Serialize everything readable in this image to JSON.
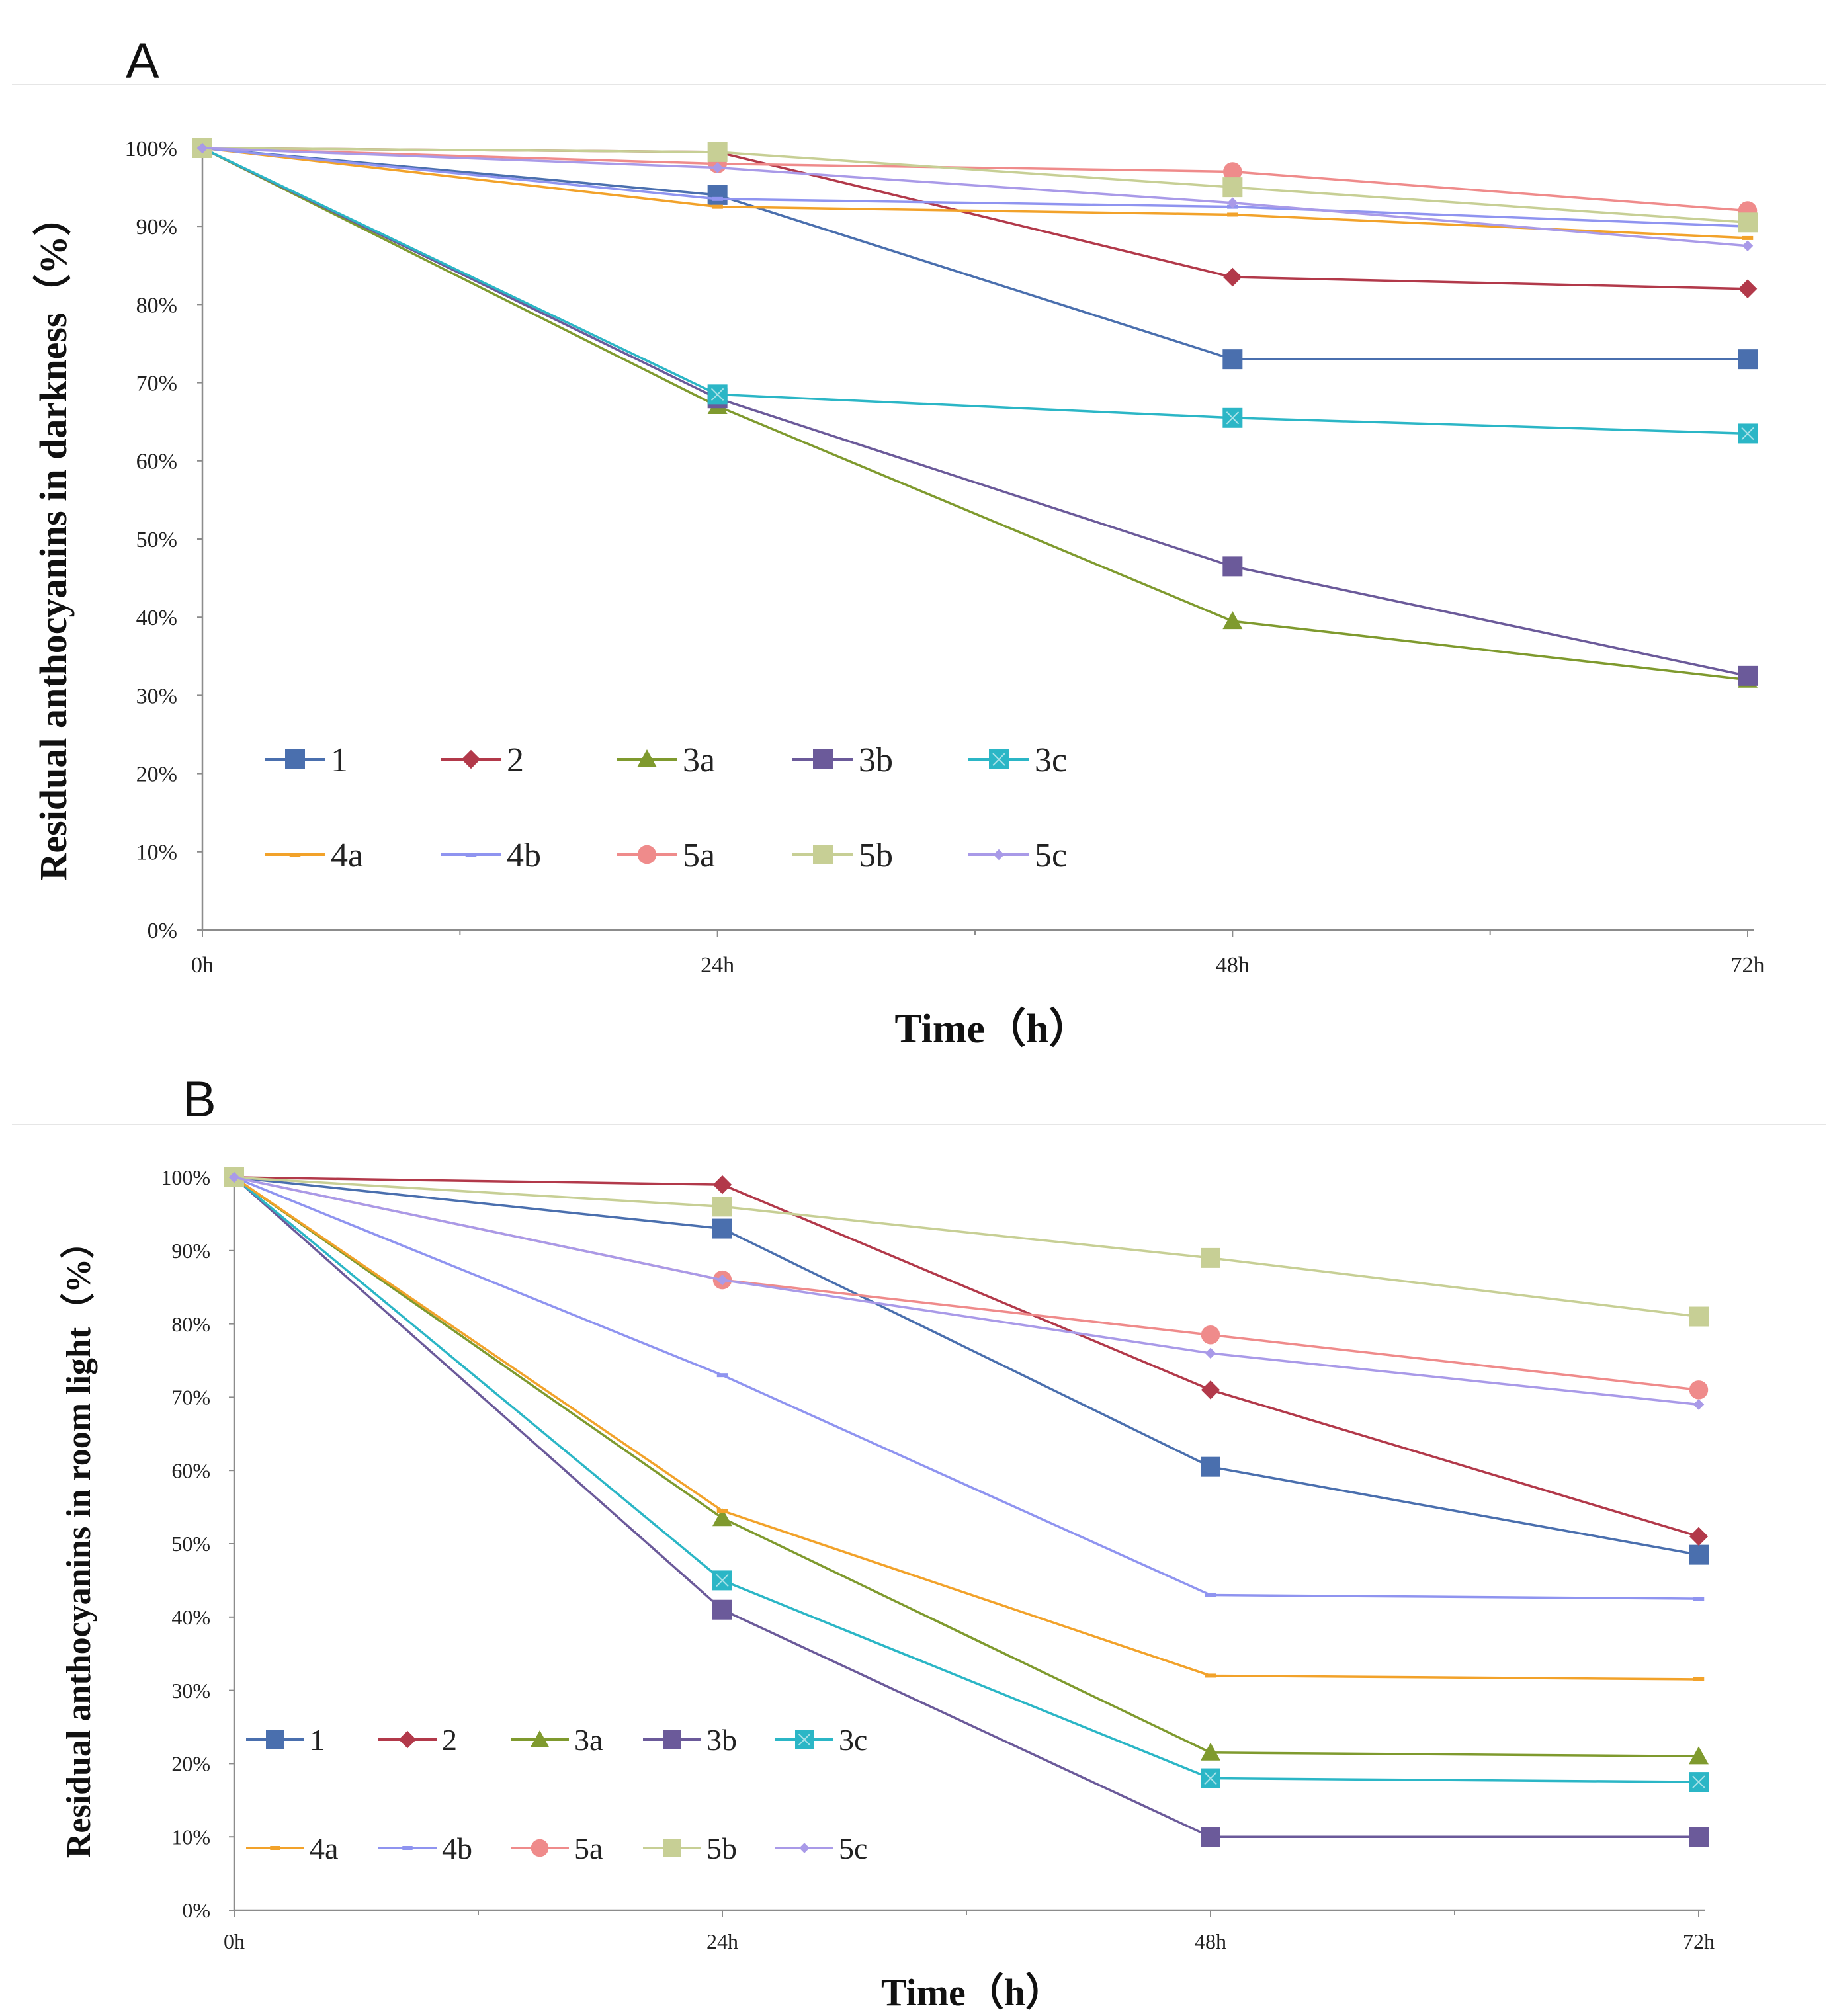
{
  "chart_data": [
    {
      "type": "line",
      "panel_label": "A",
      "title": "",
      "xlabel": "Time（h）",
      "ylabel": "Residual anthocyanins in darkness（%）",
      "categories": [
        "0h",
        "24h",
        "48h",
        "72h"
      ],
      "ylim": [
        0,
        100
      ],
      "yticks": [
        "0%",
        "10%",
        "20%",
        "30%",
        "40%",
        "50%",
        "60%",
        "70%",
        "80%",
        "90%",
        "100%"
      ],
      "grid": false,
      "legend_position": "bottom-left",
      "series": [
        {
          "name": "1",
          "values": [
            100,
            94.0,
            73.0,
            73.0
          ],
          "color": "#4a6fae",
          "marker": "square"
        },
        {
          "name": "2",
          "values": [
            100,
            99.5,
            83.5,
            82.0
          ],
          "color": "#b2394a",
          "marker": "diamond"
        },
        {
          "name": "3a",
          "values": [
            100,
            67.0,
            39.5,
            32.0
          ],
          "color": "#7f9a2e",
          "marker": "triangle"
        },
        {
          "name": "3b",
          "values": [
            100,
            68.0,
            46.5,
            32.5
          ],
          "color": "#6b5a9a",
          "marker": "square"
        },
        {
          "name": "3c",
          "values": [
            100,
            68.5,
            65.5,
            63.5
          ],
          "color": "#2bb6c6",
          "marker": "square-x"
        },
        {
          "name": "4a",
          "values": [
            100,
            92.5,
            91.5,
            88.5
          ],
          "color": "#f2a22a",
          "marker": "dash"
        },
        {
          "name": "4b",
          "values": [
            100,
            93.5,
            92.5,
            90.0
          ],
          "color": "#8f94f0",
          "marker": "dash"
        },
        {
          "name": "5a",
          "values": [
            100,
            98.0,
            97.0,
            92.0
          ],
          "color": "#ef8b8b",
          "marker": "circle"
        },
        {
          "name": "5b",
          "values": [
            100,
            99.5,
            95.0,
            90.5
          ],
          "color": "#c7cf95",
          "marker": "square"
        },
        {
          "name": "5c",
          "values": [
            100,
            97.5,
            93.0,
            87.5
          ],
          "color": "#a99ae8",
          "marker": "small-diamond"
        }
      ]
    },
    {
      "type": "line",
      "panel_label": "B",
      "title": "",
      "xlabel": "Time（h）",
      "ylabel": "Residual anthocyanins in room light（%）",
      "categories": [
        "0h",
        "24h",
        "48h",
        "72h"
      ],
      "ylim": [
        0,
        100
      ],
      "yticks": [
        "0%",
        "10%",
        "20%",
        "30%",
        "40%",
        "50%",
        "60%",
        "70%",
        "80%",
        "90%",
        "100%"
      ],
      "grid": false,
      "legend_position": "bottom-left",
      "series": [
        {
          "name": "1",
          "values": [
            100,
            93.0,
            60.5,
            48.5
          ],
          "color": "#4a6fae",
          "marker": "square"
        },
        {
          "name": "2",
          "values": [
            100,
            99.0,
            71.0,
            51.0
          ],
          "color": "#b2394a",
          "marker": "diamond"
        },
        {
          "name": "3a",
          "values": [
            100,
            53.5,
            21.5,
            21.0
          ],
          "color": "#7f9a2e",
          "marker": "triangle"
        },
        {
          "name": "3b",
          "values": [
            100,
            41.0,
            10.0,
            10.0
          ],
          "color": "#6b5a9a",
          "marker": "square"
        },
        {
          "name": "3c",
          "values": [
            100,
            45.0,
            18.0,
            17.5
          ],
          "color": "#2bb6c6",
          "marker": "square-x"
        },
        {
          "name": "4a",
          "values": [
            100,
            54.5,
            32.0,
            31.5
          ],
          "color": "#f2a22a",
          "marker": "dash"
        },
        {
          "name": "4b",
          "values": [
            100,
            73.0,
            43.0,
            42.5
          ],
          "color": "#8f94f0",
          "marker": "dash"
        },
        {
          "name": "5a",
          "values": [
            100,
            86.0,
            78.5,
            71.0
          ],
          "color": "#ef8b8b",
          "marker": "circle"
        },
        {
          "name": "5b",
          "values": [
            100,
            96.0,
            89.0,
            81.0
          ],
          "color": "#c7cf95",
          "marker": "square"
        },
        {
          "name": "5c",
          "values": [
            100,
            86.0,
            76.0,
            69.0
          ],
          "color": "#a99ae8",
          "marker": "small-diamond"
        }
      ]
    }
  ]
}
